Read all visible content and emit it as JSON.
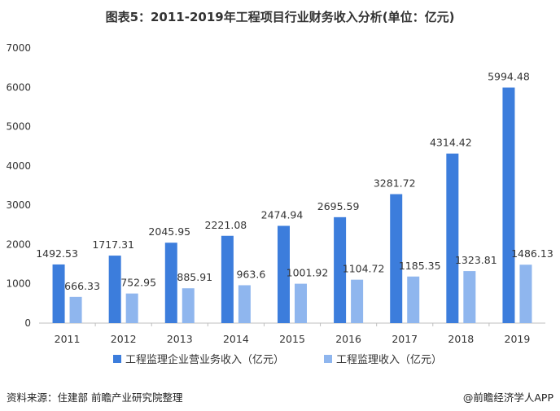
{
  "title": "图表5：2011-2019年工程项目行业财务收入分析(单位：亿元)",
  "source": "资料来源：住建部 前瞻产业研究院整理",
  "brand": "@前瞻经济学人APP",
  "colors": {
    "series1": "#3c7ddc",
    "series2": "#8fb6ee",
    "axis": "#bfbfbf",
    "grid": "#e6e6e6"
  },
  "chart_data": {
    "type": "bar",
    "title": "图表5：2011-2019年工程项目行业财务收入分析(单位：亿元)",
    "categories": [
      "2011",
      "2012",
      "2013",
      "2014",
      "2015",
      "2016",
      "2017",
      "2018",
      "2019"
    ],
    "series": [
      {
        "name": "工程监理企业营业务收入（亿元）",
        "values": [
          1492.53,
          1717.31,
          2045.95,
          2221.08,
          2474.94,
          2695.59,
          3281.72,
          4314.42,
          5994.48
        ],
        "labels": [
          "1492.53",
          "1717.31",
          "2045.95",
          "2221.08",
          "2474.94",
          "2695.59",
          "3281.72",
          "4314.42",
          "5994.48"
        ]
      },
      {
        "name": "工程监理收入（亿元）",
        "values": [
          666.33,
          752.95,
          885.91,
          963.6,
          1001.92,
          1104.72,
          1185.35,
          1323.81,
          1486.13
        ],
        "labels": [
          "666.33",
          "752.95",
          "885.91",
          "963.6",
          "1001.92",
          "1104.72",
          "1185.35",
          "1323.81",
          "1486.13"
        ]
      }
    ],
    "ylim": [
      0,
      7000
    ],
    "yticks": [
      "0",
      "1000",
      "2000",
      "3000",
      "4000",
      "5000",
      "6000",
      "7000"
    ],
    "xlabel": "",
    "ylabel": "",
    "legend": "bottom",
    "grid": false
  }
}
